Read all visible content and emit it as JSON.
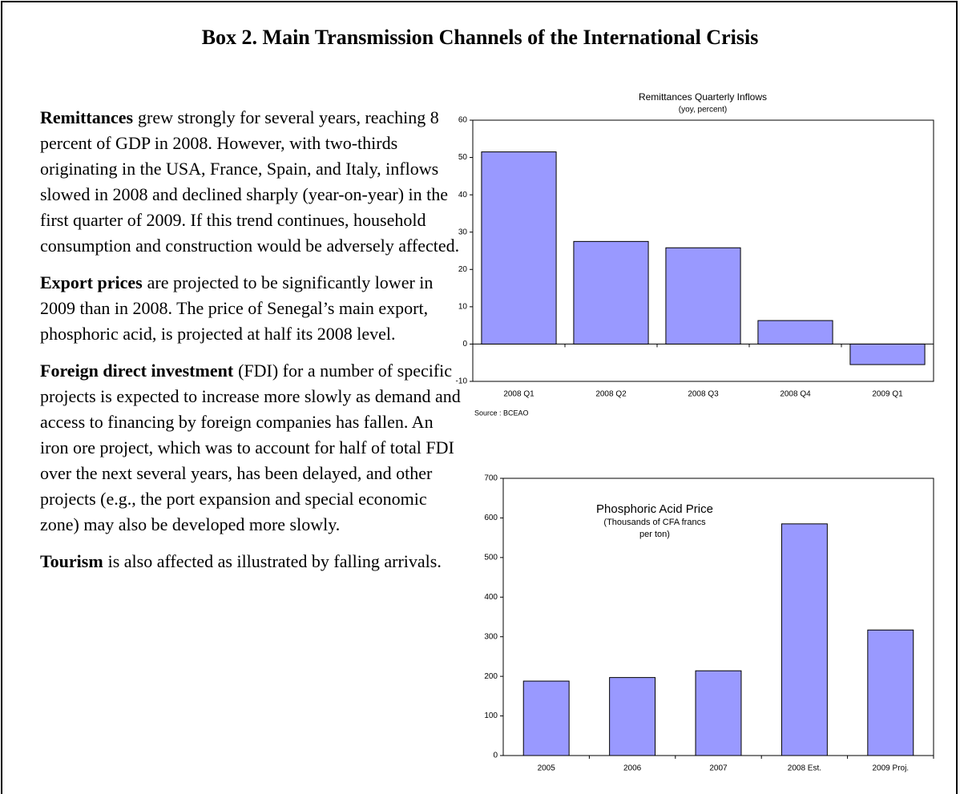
{
  "title": "Box 2. Main Transmission Channels of the International Crisis",
  "paragraphs": [
    {
      "lead": "Remittances",
      "text": "grew strongly for several years, reaching 8 percent of GDP in 2008. However, with two-thirds originating in the USA, France, Spain, and Italy, inflows slowed in 2008 and declined sharply (year-on-year) in the first quarter of 2009. If this trend continues, household consumption and construction would be adversely affected."
    },
    {
      "lead": "Export prices",
      "text": "are projected to be significantly lower in 2009 than in 2008. The price of Senegal’s main export, phosphoric acid, is projected at half its 2008 level."
    },
    {
      "lead": "Foreign direct investment",
      "text": "(FDI) for a number of specific projects is expected to increase more slowly as demand and access to financing by foreign companies has fallen. An iron ore project, which was to account for half of total FDI over the next several years, has been delayed, and other projects (e.g., the port expansion and special economic zone) may also be developed more slowly."
    },
    {
      "lead": "Tourism",
      "text": "is also affected as illustrated by falling arrivals."
    }
  ],
  "chart_data": [
    {
      "type": "bar",
      "title": "Remittances Quarterly Inflows",
      "subtitle": [
        "(yoy, percent)"
      ],
      "categories": [
        "2008 Q1",
        "2008 Q2",
        "2008 Q3",
        "2008 Q4",
        "2009 Q1"
      ],
      "values": [
        51.5,
        27.5,
        25.8,
        6.3,
        -5.5
      ],
      "color": "#9999ff",
      "ylim": [
        -10,
        60
      ],
      "yticks": [
        -10,
        0,
        10,
        20,
        30,
        40,
        50,
        60
      ],
      "grid": false,
      "note": "Source : BCEAO"
    },
    {
      "type": "bar",
      "title": "Phosphoric Acid Price",
      "subtitle": [
        "(Thousands of CFA francs",
        "per ton)"
      ],
      "categories": [
        "2005",
        "2006",
        "2007",
        "2008 Est.",
        "2009 Proj."
      ],
      "values": [
        188,
        197,
        214,
        585,
        317
      ],
      "color": "#9999ff",
      "ylim": [
        0,
        700
      ],
      "yticks": [
        0,
        100,
        200,
        300,
        400,
        500,
        600,
        700
      ],
      "grid": false
    }
  ]
}
